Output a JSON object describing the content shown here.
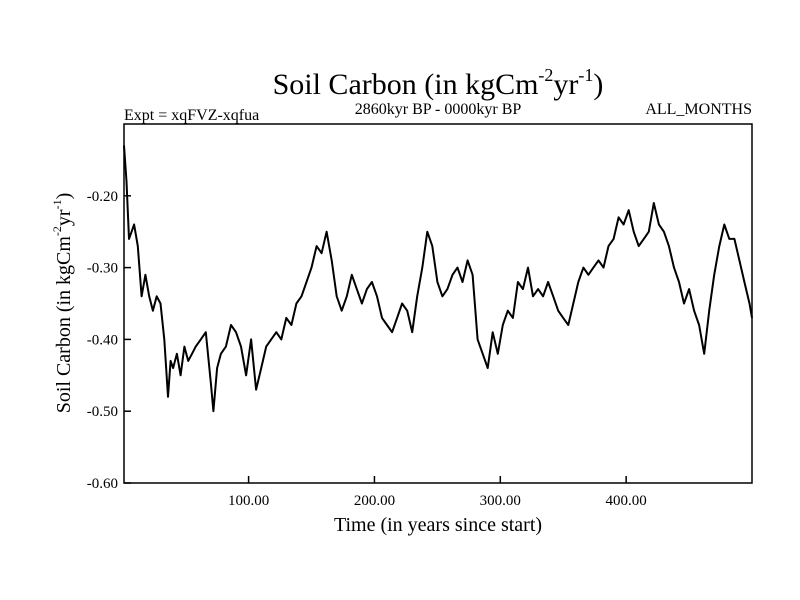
{
  "chart_data": {
    "type": "line",
    "title": {
      "base": "Soil Carbon (in kgCm",
      "exp1": "-2",
      "mid": "yr",
      "exp2": "-1",
      "close": ")"
    },
    "left_header": "Expt = xqFVZ-xqfua",
    "center_header": "2860kyr BP - 0000kyr BP",
    "right_header": "ALL_MONTHS",
    "xlabel": "Time (in years since start)",
    "ylabel": {
      "base": "Soil Carbon (in kgCm",
      "exp1": "-2",
      "mid": "yr",
      "exp2": "-1",
      "close": ")"
    },
    "xlim": [
      1,
      500
    ],
    "ylim": [
      -0.6,
      -0.1
    ],
    "x_ticks": [
      {
        "value": 100,
        "label": "100.00"
      },
      {
        "value": 200,
        "label": "200.00"
      },
      {
        "value": 300,
        "label": "300.00"
      },
      {
        "value": 400,
        "label": "400.00"
      }
    ],
    "y_ticks": [
      {
        "value": -0.6,
        "label": "-0.60"
      },
      {
        "value": -0.5,
        "label": "-0.50"
      },
      {
        "value": -0.4,
        "label": "-0.40"
      },
      {
        "value": -0.3,
        "label": "-0.30"
      },
      {
        "value": -0.2,
        "label": "-0.20"
      }
    ],
    "series": [
      {
        "name": "Soil Carbon",
        "x": [
          1,
          3,
          5,
          7,
          9,
          12,
          15,
          18,
          21,
          24,
          27,
          30,
          33,
          36,
          38,
          40,
          43,
          46,
          49,
          52,
          55,
          58,
          62,
          66,
          70,
          72,
          75,
          78,
          82,
          86,
          90,
          94,
          98,
          102,
          106,
          110,
          114,
          118,
          122,
          126,
          130,
          134,
          138,
          142,
          146,
          150,
          154,
          158,
          162,
          166,
          170,
          174,
          178,
          182,
          186,
          190,
          194,
          198,
          202,
          206,
          210,
          214,
          218,
          222,
          226,
          230,
          234,
          238,
          242,
          246,
          250,
          254,
          258,
          262,
          266,
          270,
          274,
          278,
          282,
          286,
          290,
          294,
          298,
          302,
          306,
          310,
          314,
          318,
          322,
          326,
          330,
          334,
          338,
          342,
          346,
          350,
          354,
          358,
          362,
          366,
          370,
          374,
          378,
          382,
          386,
          390,
          394,
          398,
          402,
          406,
          410,
          414,
          418,
          422,
          426,
          430,
          434,
          438,
          442,
          446,
          450,
          454,
          458,
          462,
          466,
          470,
          474,
          478,
          482,
          486,
          490,
          494,
          498,
          500
        ],
        "y": [
          -0.13,
          -0.18,
          -0.26,
          -0.25,
          -0.24,
          -0.27,
          -0.34,
          -0.31,
          -0.34,
          -0.36,
          -0.34,
          -0.35,
          -0.4,
          -0.48,
          -0.43,
          -0.44,
          -0.42,
          -0.45,
          -0.41,
          -0.43,
          -0.42,
          -0.41,
          -0.4,
          -0.39,
          -0.46,
          -0.5,
          -0.44,
          -0.42,
          -0.41,
          -0.38,
          -0.39,
          -0.41,
          -0.45,
          -0.4,
          -0.47,
          -0.44,
          -0.41,
          -0.4,
          -0.39,
          -0.4,
          -0.37,
          -0.38,
          -0.35,
          -0.34,
          -0.32,
          -0.3,
          -0.27,
          -0.28,
          -0.25,
          -0.29,
          -0.34,
          -0.36,
          -0.34,
          -0.31,
          -0.33,
          -0.35,
          -0.33,
          -0.32,
          -0.34,
          -0.37,
          -0.38,
          -0.39,
          -0.37,
          -0.35,
          -0.36,
          -0.39,
          -0.34,
          -0.3,
          -0.25,
          -0.27,
          -0.32,
          -0.34,
          -0.33,
          -0.31,
          -0.3,
          -0.32,
          -0.29,
          -0.31,
          -0.4,
          -0.42,
          -0.44,
          -0.39,
          -0.42,
          -0.38,
          -0.36,
          -0.37,
          -0.32,
          -0.33,
          -0.3,
          -0.34,
          -0.33,
          -0.34,
          -0.32,
          -0.34,
          -0.36,
          -0.37,
          -0.38,
          -0.35,
          -0.32,
          -0.3,
          -0.31,
          -0.3,
          -0.29,
          -0.3,
          -0.27,
          -0.26,
          -0.23,
          -0.24,
          -0.22,
          -0.25,
          -0.27,
          -0.26,
          -0.25,
          -0.21,
          -0.24,
          -0.25,
          -0.27,
          -0.3,
          -0.32,
          -0.35,
          -0.33,
          -0.36,
          -0.38,
          -0.42,
          -0.36,
          -0.31,
          -0.27,
          -0.24,
          -0.26,
          -0.26,
          -0.29,
          -0.32,
          -0.35,
          -0.37
        ]
      }
    ]
  }
}
